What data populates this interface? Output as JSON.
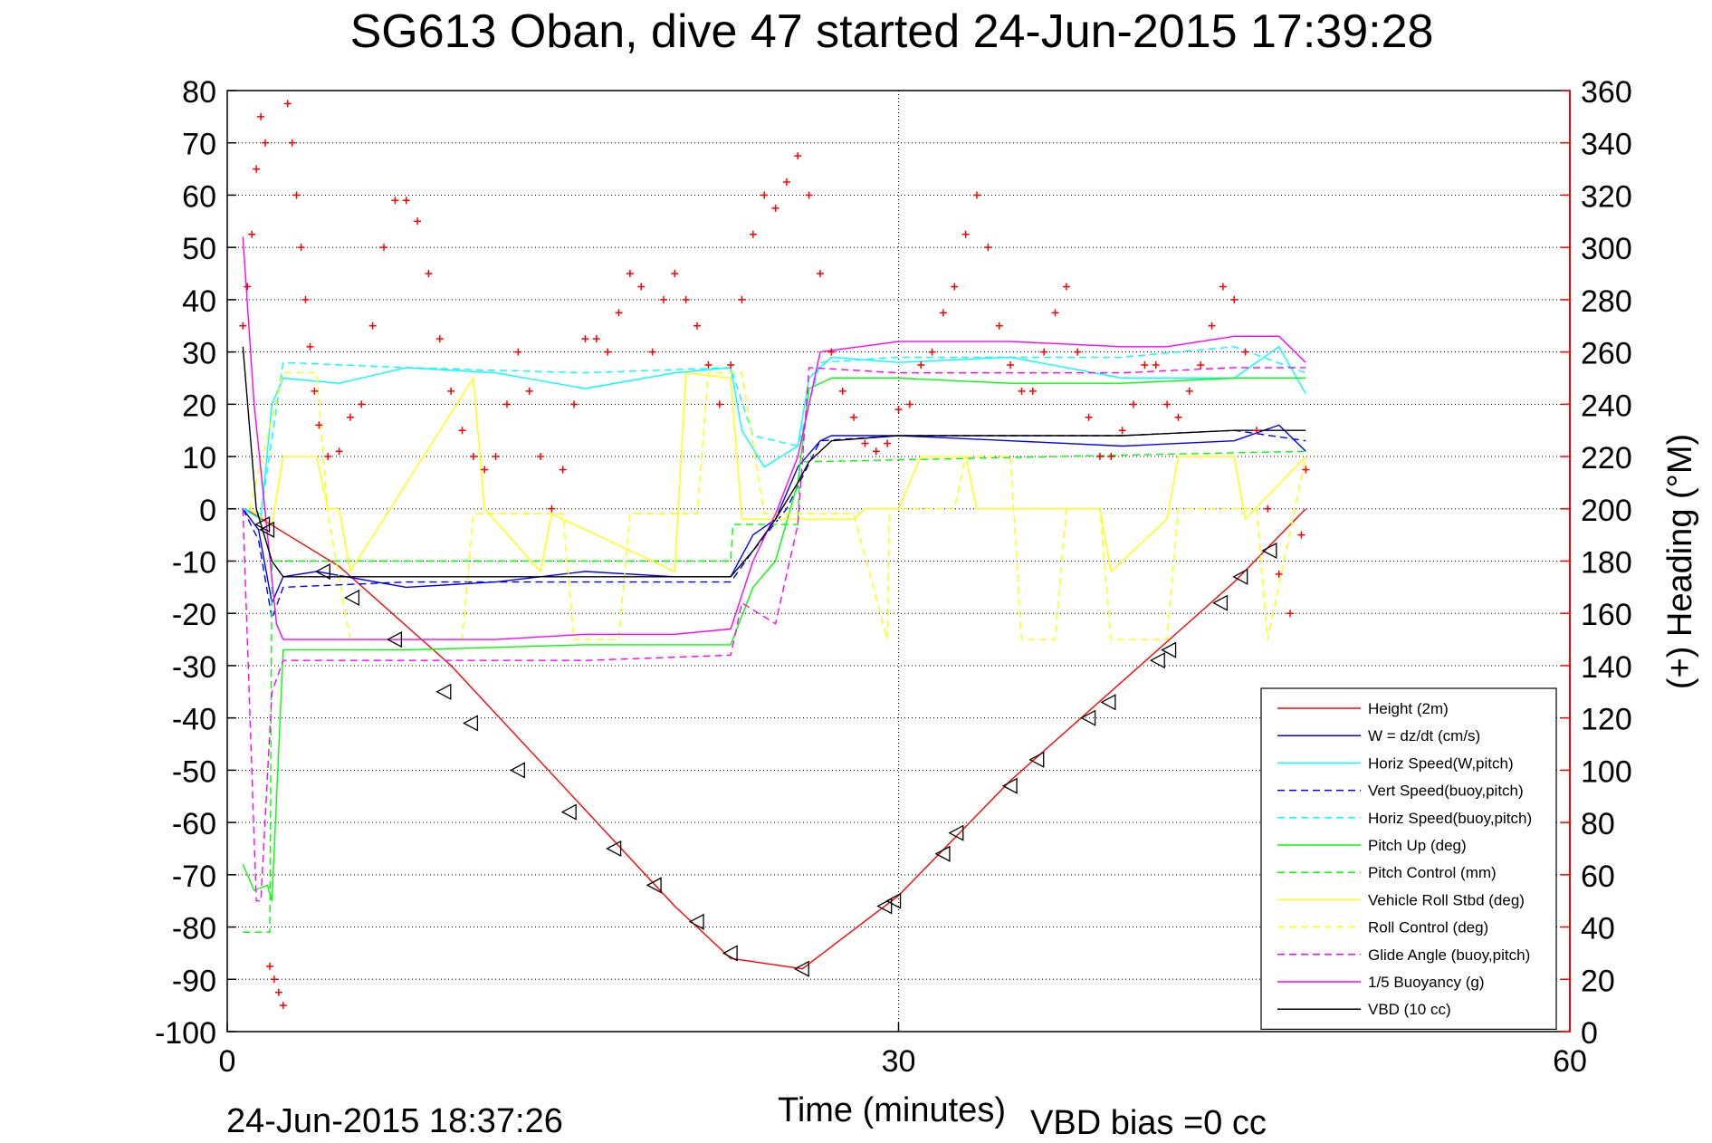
{
  "title": "SG613 Oban, dive 47 started 24-Jun-2015 17:39:28",
  "footer": {
    "generated": "24-Jun-2015 18:37:26",
    "vbd_bias": "VBD bias =0 cc"
  },
  "colors": {
    "height": "#ff0000",
    "w": "#0000ff",
    "horiz_w": "#00ffff",
    "vert_buoy": "#0000ff",
    "horiz_buoy": "#00ffff",
    "pitch_up": "#00ff00",
    "pitch_control": "#00ff00",
    "roll": "#ffff00",
    "roll_control": "#ffff00",
    "glide": "#ff00ff",
    "buoyancy": "#ff00ff",
    "vbd": "#000000",
    "heading": "#ff0000"
  },
  "chart_data": {
    "type": "line",
    "title": "SG613 Oban, dive 47 started 24-Jun-2015 17:39:28",
    "xlabel": "Time (minutes)",
    "ylabel": "",
    "y2label": "(+) Heading (°M)",
    "xlim": [
      0,
      60
    ],
    "ylim": [
      -100,
      80
    ],
    "y2lim": [
      0,
      360
    ],
    "x_ticks": [
      0,
      30,
      60
    ],
    "y_ticks": [
      -100,
      -90,
      -80,
      -70,
      -60,
      -50,
      -40,
      -30,
      -20,
      -10,
      0,
      10,
      20,
      30,
      40,
      50,
      60,
      70,
      80
    ],
    "y2_ticks": [
      0,
      20,
      40,
      60,
      80,
      100,
      120,
      140,
      160,
      180,
      200,
      220,
      240,
      260,
      280,
      300,
      320,
      340,
      360
    ],
    "grid": true,
    "legend_position": "bottom-right",
    "series": [
      {
        "key": "height",
        "name": "Height (2m)",
        "style": "solid",
        "x": [
          0.8,
          5,
          10,
          15,
          20,
          22.5,
          25.7,
          30,
          35,
          40,
          45,
          48.2
        ],
        "y": [
          0,
          -11,
          -30,
          -53,
          -76,
          -86,
          -88,
          -74,
          -52,
          -33,
          -14,
          0
        ]
      },
      {
        "key": "w",
        "name": "W = dz/dt (cm/s)",
        "style": "solid",
        "x": [
          0.7,
          1.4,
          2,
          2.5,
          4,
          8,
          12,
          16,
          20,
          22.5,
          23.5,
          24.5,
          25.5,
          26.5,
          27,
          30,
          35,
          40,
          45,
          47,
          48.2
        ],
        "y": [
          0,
          -4,
          -18,
          -13,
          -12,
          -15,
          -14,
          -12,
          -13,
          -13,
          -5,
          -2,
          8,
          13,
          14,
          14,
          13,
          12,
          13,
          16,
          11
        ]
      },
      {
        "key": "horiz_w",
        "name": "Horiz Speed(W,pitch)",
        "style": "solid",
        "x": [
          0.7,
          1.5,
          2,
          2.5,
          5,
          8,
          12,
          16,
          20,
          22.5,
          23,
          24,
          25.5,
          26,
          27,
          30,
          35,
          40,
          45,
          47,
          48.2
        ],
        "y": [
          0,
          -2,
          20,
          25,
          24,
          27,
          26,
          23,
          26,
          27,
          15,
          8,
          12,
          25,
          29,
          28,
          29,
          25,
          25,
          31,
          22
        ]
      },
      {
        "key": "vert_buoy",
        "name": "Vert Speed(buoy,pitch)",
        "style": "dashed",
        "x": [
          0.7,
          1.4,
          2,
          2.5,
          8,
          16,
          22.5,
          23.5,
          25,
          26.5,
          30,
          40,
          45,
          48.2
        ],
        "y": [
          0,
          -6,
          -21,
          -15,
          -14,
          -14,
          -14,
          -8,
          0,
          13,
          14,
          14,
          15,
          13
        ]
      },
      {
        "key": "horiz_buoy",
        "name": "Horiz Speed(buoy,pitch)",
        "style": "dashed",
        "x": [
          0.7,
          1.5,
          2.5,
          8,
          16,
          22.5,
          23.5,
          25.5,
          26.5,
          30,
          40,
          45,
          48.2
        ],
        "y": [
          0,
          -1,
          28,
          27,
          26,
          27,
          14,
          12,
          28,
          29,
          29,
          31,
          26
        ]
      },
      {
        "key": "pitch_up",
        "name": "Pitch Up (deg)",
        "style": "solid",
        "x": [
          0.7,
          1.2,
          1.8,
          2,
          2.5,
          8,
          16,
          22.5,
          23.5,
          24.5,
          25.5,
          26,
          27,
          30,
          35,
          40,
          45,
          48.2
        ],
        "y": [
          -68,
          -73,
          -72,
          -75,
          -27,
          -27,
          -26,
          -26,
          -15,
          -10,
          5,
          23,
          25,
          25,
          24,
          24,
          25,
          25
        ]
      },
      {
        "key": "pitch_control",
        "name": "Pitch Control (mm)",
        "style": "dashed",
        "x": [
          0.7,
          1.8,
          1.9,
          2.0,
          2.5,
          22.5,
          22.6,
          24,
          25.5,
          25.6,
          26,
          48.2
        ],
        "y": [
          -81,
          -81,
          -81,
          -10,
          -10,
          -10,
          -3,
          -3,
          -3,
          9,
          9,
          11
        ]
      },
      {
        "key": "roll",
        "name": "Vehicle Roll Stbd (deg)",
        "style": "solid",
        "x": [
          1,
          2,
          2.5,
          4,
          4.5,
          5,
          5.5,
          11,
          11.5,
          14,
          14.5,
          20,
          20.5,
          22.5,
          23,
          28,
          28.5,
          30,
          31,
          33,
          33.5,
          39,
          39.5,
          42,
          42.5,
          45,
          45.5,
          48.2
        ],
        "y": [
          0,
          -3,
          10,
          10,
          0,
          0,
          -12,
          25,
          0,
          -12,
          -1,
          -12,
          26,
          25,
          -2,
          -2,
          0,
          0,
          10,
          10,
          0,
          0,
          -12,
          -2,
          10,
          10,
          -2,
          10
        ]
      },
      {
        "key": "roll_control",
        "name": "Roll Control (deg)",
        "style": "dashed",
        "x": [
          1,
          2.5,
          4,
          4.5,
          5.5,
          10.5,
          11,
          15,
          15.5,
          17.5,
          18,
          21,
          21.5,
          23,
          24,
          28,
          29.5,
          29.6,
          30,
          32.5,
          33,
          35,
          35.5,
          37,
          37.5,
          39,
          39.5,
          42,
          42.5,
          46,
          46.5,
          48.2
        ],
        "y": [
          0,
          26,
          26,
          -1,
          -25,
          -25,
          -1,
          -1,
          -25,
          -25,
          -1,
          -1,
          26,
          26,
          -1,
          -1,
          -25,
          0,
          0,
          0,
          10,
          10,
          -25,
          -25,
          0,
          0,
          -25,
          -25,
          0,
          0,
          -25,
          10
        ]
      },
      {
        "key": "glide",
        "name": "Glide Angle (buoy,pitch)",
        "style": "dashed",
        "x": [
          0.7,
          1.3,
          1.5,
          2,
          2.5,
          8,
          16,
          22.5,
          23,
          24.5,
          25.5,
          26,
          30,
          40,
          45,
          48.2
        ],
        "y": [
          0,
          -75,
          -75,
          -35,
          -29,
          -29,
          -29,
          -28,
          -18,
          -22,
          -3,
          27,
          26,
          26,
          27,
          27
        ]
      },
      {
        "key": "buoyancy",
        "name": "1/5 Buoyancy (g)",
        "style": "solid",
        "x": [
          0.7,
          1.2,
          1.8,
          2.2,
          2.5,
          4,
          8,
          12,
          16,
          20,
          22.5,
          23.5,
          24.5,
          25.5,
          26.5,
          30,
          35,
          40,
          42,
          45,
          47,
          48.2
        ],
        "y": [
          52,
          20,
          -5,
          -22,
          -25,
          -25,
          -25,
          -25,
          -24,
          -24,
          -23,
          -10,
          -1,
          10,
          30,
          32,
          32,
          31,
          31,
          33,
          33,
          28
        ]
      },
      {
        "key": "vbd",
        "name": "VBD (10 cc)",
        "style": "solid",
        "x": [
          0.7,
          1.3,
          2,
          2.5,
          4,
          8,
          16,
          22.5,
          23.5,
          24.5,
          25.5,
          26,
          27,
          30,
          35,
          40,
          45,
          48.2
        ],
        "y": [
          31,
          0,
          -10,
          -13,
          -13,
          -13,
          -13,
          -13,
          -8,
          -2,
          5,
          9,
          13,
          14,
          14,
          14,
          15,
          15
        ]
      }
    ],
    "heading": {
      "name": "(+) Heading",
      "x": [
        0.7,
        0.9,
        1.1,
        1.3,
        1.5,
        1.7,
        1.9,
        2.1,
        2.3,
        2.5,
        2.7,
        2.9,
        3.1,
        3.3,
        3.5,
        3.7,
        3.9,
        4.1,
        4.5,
        5,
        5.5,
        6,
        6.5,
        7,
        7.5,
        8,
        8.5,
        9,
        9.5,
        10,
        10.5,
        11,
        11.5,
        12,
        12.5,
        13,
        13.5,
        14,
        14.5,
        15,
        15.5,
        16,
        16.5,
        17,
        17.5,
        18,
        18.5,
        19,
        19.5,
        20,
        20.5,
        21,
        21.5,
        22,
        22.5,
        23,
        23.5,
        24,
        24.5,
        25,
        25.5,
        26,
        26.5,
        27,
        27.5,
        28,
        28.5,
        29,
        29.5,
        30,
        30.5,
        31,
        31.5,
        32,
        32.5,
        33,
        33.5,
        34,
        34.5,
        35,
        35.5,
        36,
        36.5,
        37,
        37.5,
        38,
        38.5,
        39,
        39.5,
        40,
        40.5,
        41,
        41.5,
        42,
        42.5,
        43,
        43.5,
        44,
        44.5,
        45,
        45.5,
        46,
        46.5,
        47,
        47.5,
        48,
        48.2
      ],
      "y": [
        270,
        285,
        305,
        330,
        350,
        340,
        25,
        20,
        15,
        10,
        355,
        340,
        320,
        300,
        280,
        262,
        245,
        232,
        220,
        222,
        235,
        240,
        270,
        300,
        318,
        318,
        310,
        290,
        265,
        245,
        230,
        220,
        215,
        220,
        240,
        260,
        245,
        220,
        200,
        215,
        240,
        265,
        265,
        260,
        275,
        290,
        285,
        260,
        280,
        290,
        280,
        270,
        255,
        240,
        255,
        280,
        305,
        320,
        315,
        325,
        335,
        320,
        290,
        260,
        245,
        235,
        225,
        222,
        225,
        238,
        240,
        255,
        260,
        275,
        285,
        305,
        320,
        300,
        270,
        255,
        245,
        245,
        260,
        275,
        285,
        260,
        235,
        220,
        220,
        230,
        240,
        255,
        255,
        240,
        235,
        245,
        255,
        270,
        285,
        280,
        260,
        230,
        200,
        175,
        160,
        190,
        215
      ]
    },
    "markers": {
      "name": "depth markers",
      "x": [
        1.6,
        1.8,
        4.3,
        5.6,
        7.5,
        9.7,
        10.9,
        13,
        15.3,
        17.3,
        19.1,
        21,
        22.5,
        25.7,
        29.4,
        29.8,
        32,
        32.6,
        35,
        36.2,
        38.5,
        39.4,
        41.6,
        42.1,
        44.4,
        45.3,
        46.6
      ],
      "y": [
        -3,
        -4,
        -12,
        -17,
        -25,
        -35,
        -41,
        -50,
        -58,
        -65,
        -72,
        -79,
        -85,
        -88,
        -76,
        -75,
        -66,
        -62,
        -53,
        -48,
        -40,
        -37,
        -29,
        -27,
        -18,
        -13,
        -8
      ]
    }
  }
}
